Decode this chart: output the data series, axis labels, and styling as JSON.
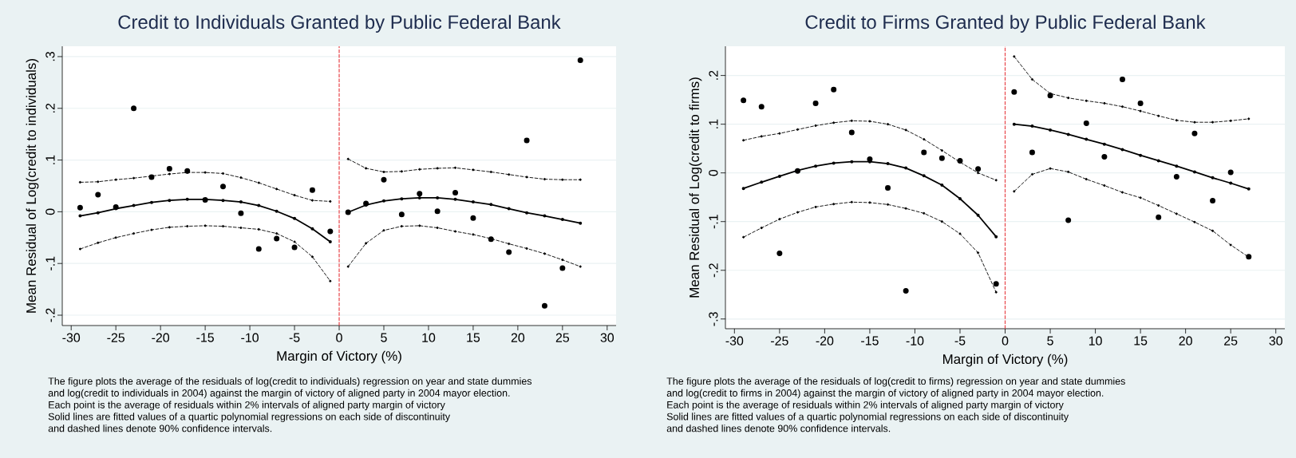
{
  "chart_data": [
    {
      "type": "scatter",
      "title": "Credit to Individuals Granted by Public Federal Bank",
      "xlabel": "Margin of Victory (%)",
      "ylabel": "Mean Residual of Log(credit to individuals)",
      "marker": "circle",
      "xlim": [
        -31,
        31
      ],
      "ylim": [
        -0.22,
        0.32
      ],
      "xticks": [
        -30,
        -25,
        -20,
        -15,
        -10,
        -5,
        0,
        5,
        10,
        15,
        20,
        25,
        30
      ],
      "yticks": [
        {
          "value": -0.2,
          "label": "-.2"
        },
        {
          "value": -0.1,
          "label": "-.1"
        },
        0,
        {
          "value": 0.1,
          "label": ".1"
        },
        {
          "value": 0.2,
          "label": ".2"
        },
        {
          "value": 0.3,
          "label": ".3"
        }
      ],
      "grid": "y",
      "ref_lines": [
        {
          "axis": "x",
          "value": 0,
          "color": "#e8454a",
          "line_style": "dashed"
        }
      ],
      "series": [
        {
          "type": "scatter",
          "color": "#000000",
          "x": [
            -29,
            -27,
            -25,
            -23,
            -21,
            -19,
            -17,
            -15,
            -13,
            -11,
            -9,
            -7,
            -5,
            -3,
            -1,
            1,
            3,
            5,
            7,
            9,
            11,
            13,
            15,
            17,
            19,
            21,
            23,
            25,
            27
          ],
          "values": [
            0.008,
            0.033,
            0.009,
            0.2,
            0.067,
            0.083,
            0.079,
            0.023,
            0.049,
            -0.003,
            -0.072,
            -0.052,
            -0.069,
            0.042,
            -0.038,
            -0.001,
            0.016,
            0.062,
            -0.005,
            0.035,
            0.001,
            0.037,
            -0.012,
            -0.053,
            -0.078,
            0.138,
            -0.182,
            -0.109,
            0.293
          ]
        },
        {
          "type": "line",
          "line_style": "solid",
          "color": "#000000",
          "x": [
            -29,
            -27,
            -25,
            -23,
            -21,
            -19,
            -17,
            -15,
            -13,
            -11,
            -9,
            -7,
            -5,
            -3,
            -1
          ],
          "values": [
            -0.008,
            -0.002,
            0.006,
            0.012,
            0.018,
            0.022,
            0.024,
            0.024,
            0.022,
            0.019,
            0.012,
            0.001,
            -0.013,
            -0.033,
            -0.058
          ]
        },
        {
          "type": "line",
          "line_style": "solid",
          "color": "#000000",
          "x": [
            1,
            3,
            5,
            7,
            9,
            11,
            13,
            15,
            17,
            19,
            21,
            23,
            25,
            27
          ],
          "values": [
            -0.001,
            0.013,
            0.021,
            0.025,
            0.027,
            0.027,
            0.024,
            0.019,
            0.014,
            0.006,
            -0.002,
            -0.008,
            -0.015,
            -0.022
          ]
        },
        {
          "type": "line",
          "line_style": "dashed",
          "color": "#000000",
          "x": [
            -29,
            -27,
            -25,
            -23,
            -21,
            -19,
            -17,
            -15,
            -13,
            -11,
            -9,
            -7,
            -5,
            -3,
            -1
          ],
          "values": [
            0.057,
            0.058,
            0.062,
            0.065,
            0.069,
            0.073,
            0.076,
            0.076,
            0.074,
            0.066,
            0.056,
            0.044,
            0.032,
            0.022,
            0.02
          ]
        },
        {
          "type": "line",
          "line_style": "dashed",
          "color": "#000000",
          "x": [
            -29,
            -27,
            -25,
            -23,
            -21,
            -19,
            -17,
            -15,
            -13,
            -11,
            -9,
            -7,
            -5,
            -3,
            -1
          ],
          "values": [
            -0.072,
            -0.06,
            -0.05,
            -0.042,
            -0.035,
            -0.03,
            -0.028,
            -0.027,
            -0.028,
            -0.031,
            -0.034,
            -0.042,
            -0.058,
            -0.087,
            -0.134
          ]
        },
        {
          "type": "line",
          "line_style": "dashed",
          "color": "#000000",
          "x": [
            1,
            3,
            5,
            7,
            9,
            11,
            13,
            15,
            17,
            19,
            21,
            23,
            25,
            27
          ],
          "values": [
            0.102,
            0.084,
            0.077,
            0.078,
            0.082,
            0.084,
            0.085,
            0.081,
            0.077,
            0.072,
            0.067,
            0.063,
            0.062,
            0.062
          ]
        },
        {
          "type": "line",
          "line_style": "dashed",
          "color": "#000000",
          "x": [
            1,
            3,
            5,
            7,
            9,
            11,
            13,
            15,
            17,
            19,
            21,
            23,
            25,
            27
          ],
          "values": [
            -0.106,
            -0.061,
            -0.036,
            -0.028,
            -0.027,
            -0.031,
            -0.038,
            -0.044,
            -0.052,
            -0.062,
            -0.071,
            -0.081,
            -0.093,
            -0.106
          ]
        }
      ],
      "annotations": [
        "The figure plots the average of the residuals of log(credit to individuals) regression on year and state dummies",
        "and log(credit to individuals in 2004) against the margin of victory of aligned party in 2004 mayor election.",
        "Each point is the average of residuals within 2% intervals of aligned party margin of victory",
        "Solid lines are fitted values of a quartic polynomial regressions on each side of discontinuity",
        "and dashed lines denote 90% confidence intervals."
      ]
    },
    {
      "type": "scatter",
      "title": "Credit to Firms Granted by Public Federal Bank",
      "xlabel": "Margin of Victory (%)",
      "ylabel": "Mean Residual of Log(credit to firms)",
      "marker": "circle",
      "xlim": [
        -31,
        31
      ],
      "ylim": [
        -0.32,
        0.26
      ],
      "xticks": [
        -30,
        -25,
        -20,
        -15,
        -10,
        -5,
        0,
        5,
        10,
        15,
        20,
        25,
        30
      ],
      "yticks": [
        {
          "value": -0.3,
          "label": "-.3"
        },
        {
          "value": -0.2,
          "label": "-.2"
        },
        {
          "value": -0.1,
          "label": "-.1"
        },
        0,
        {
          "value": 0.1,
          "label": ".1"
        },
        {
          "value": 0.2,
          "label": ".2"
        }
      ],
      "grid": "y",
      "ref_lines": [
        {
          "axis": "x",
          "value": 0,
          "color": "#e8454a",
          "line_style": "dashed"
        }
      ],
      "series": [
        {
          "type": "scatter",
          "color": "#000000",
          "x": [
            -29,
            -27,
            -25,
            -23,
            -21,
            -19,
            -17,
            -15,
            -13,
            -11,
            -9,
            -7,
            -5,
            -3,
            -1,
            1,
            3,
            5,
            7,
            9,
            11,
            13,
            15,
            17,
            19,
            21,
            23,
            25,
            27
          ],
          "values": [
            0.149,
            0.136,
            -0.165,
            0.004,
            0.143,
            0.171,
            0.083,
            0.028,
            -0.031,
            -0.242,
            0.042,
            0.03,
            0.025,
            0.008,
            -0.228,
            0.166,
            0.042,
            0.159,
            -0.097,
            0.102,
            0.033,
            0.192,
            0.143,
            -0.091,
            -0.008,
            0.081,
            -0.057,
            0.001,
            -0.172
          ]
        },
        {
          "type": "line",
          "line_style": "solid",
          "color": "#000000",
          "x": [
            -29,
            -27,
            -25,
            -23,
            -21,
            -19,
            -17,
            -15,
            -13,
            -11,
            -9,
            -7,
            -5,
            -3,
            -1
          ],
          "values": [
            -0.032,
            -0.019,
            -0.007,
            0.005,
            0.014,
            0.02,
            0.023,
            0.023,
            0.019,
            0.01,
            -0.006,
            -0.025,
            -0.053,
            -0.087,
            -0.131
          ]
        },
        {
          "type": "line",
          "line_style": "solid",
          "color": "#000000",
          "x": [
            1,
            3,
            5,
            7,
            9,
            11,
            13,
            15,
            17,
            19,
            21,
            23,
            25,
            27
          ],
          "values": [
            0.1,
            0.096,
            0.088,
            0.079,
            0.069,
            0.059,
            0.048,
            0.036,
            0.025,
            0.014,
            0.002,
            -0.01,
            -0.021,
            -0.033
          ]
        },
        {
          "type": "line",
          "line_style": "dashed",
          "color": "#000000",
          "x": [
            -29,
            -27,
            -25,
            -23,
            -21,
            -19,
            -17,
            -15,
            -13,
            -11,
            -9,
            -7,
            -5,
            -3,
            -1
          ],
          "values": [
            0.067,
            0.075,
            0.081,
            0.089,
            0.097,
            0.103,
            0.107,
            0.106,
            0.1,
            0.088,
            0.069,
            0.046,
            0.022,
            0.0,
            -0.015
          ]
        },
        {
          "type": "line",
          "line_style": "dashed",
          "color": "#000000",
          "x": [
            -29,
            -27,
            -25,
            -23,
            -21,
            -19,
            -17,
            -15,
            -13,
            -11,
            -9,
            -7,
            -5,
            -3,
            -1
          ],
          "values": [
            -0.132,
            -0.113,
            -0.095,
            -0.081,
            -0.07,
            -0.064,
            -0.06,
            -0.061,
            -0.065,
            -0.073,
            -0.083,
            -0.1,
            -0.125,
            -0.164,
            -0.245
          ]
        },
        {
          "type": "line",
          "line_style": "dashed",
          "color": "#000000",
          "x": [
            1,
            3,
            5,
            7,
            9,
            11,
            13,
            15,
            17,
            19,
            21,
            23,
            25,
            27
          ],
          "values": [
            0.239,
            0.192,
            0.163,
            0.154,
            0.148,
            0.143,
            0.136,
            0.127,
            0.117,
            0.108,
            0.104,
            0.104,
            0.107,
            0.111
          ]
        },
        {
          "type": "line",
          "line_style": "dashed",
          "color": "#000000",
          "x": [
            1,
            3,
            5,
            7,
            9,
            11,
            13,
            15,
            17,
            19,
            21,
            23,
            25,
            27
          ],
          "values": [
            -0.038,
            -0.003,
            0.009,
            0.002,
            -0.013,
            -0.026,
            -0.04,
            -0.051,
            -0.067,
            -0.084,
            -0.101,
            -0.119,
            -0.148,
            -0.173
          ]
        }
      ],
      "annotations": [
        "The figure plots the average of the residuals of log(credit to firms) regression on year and state dummies",
        "and log(credit to firms in 2004) against the margin of victory of aligned party in 2004 mayor election.",
        "Each point is the average of residuals within 2% intervals of aligned party margin of victory",
        "Solid lines are fitted values of a quartic polynomial regressions on each side of discontinuity",
        "and dashed lines denote 90% confidence intervals."
      ]
    }
  ]
}
